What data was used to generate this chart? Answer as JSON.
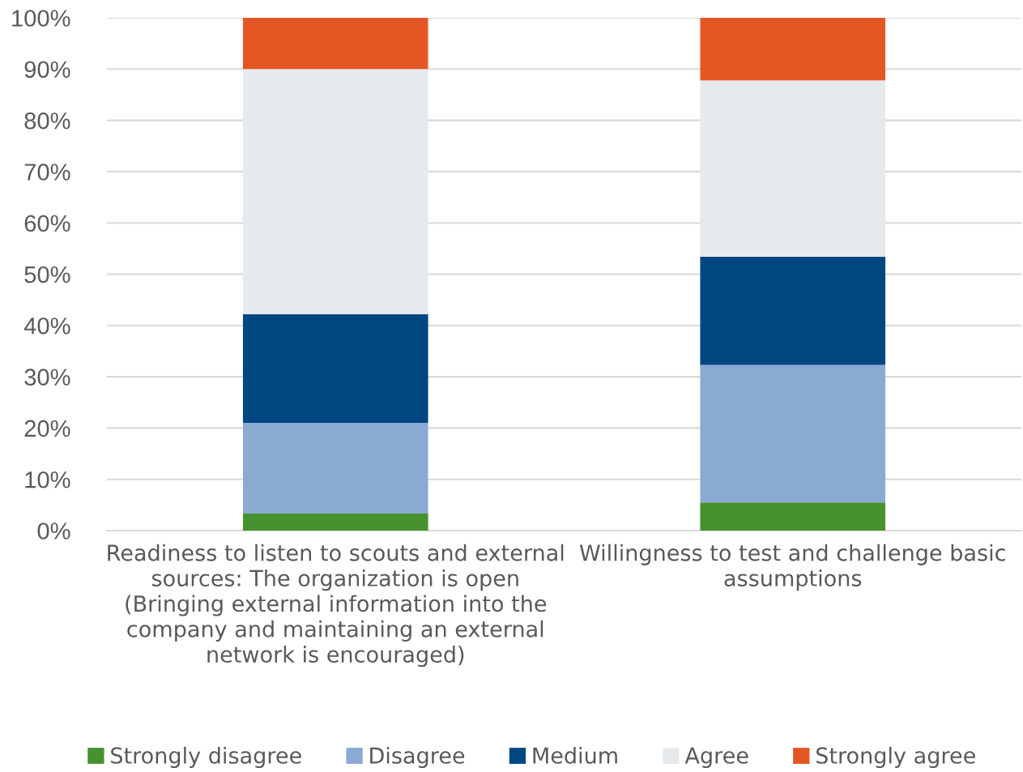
{
  "chart_data": {
    "type": "bar",
    "stacked": true,
    "categories": [
      "Readiness to listen to scouts and external\nsources: The organization is open\n(Bringing external information into the\ncompany and maintaining an external\nnetwork is encouraged)",
      "Willingness to test and challenge basic\nassumptions"
    ],
    "series": [
      {
        "name": "Strongly disagree",
        "color": "#46922f",
        "values": [
          3.3,
          5.5
        ]
      },
      {
        "name": "Disagree",
        "color": "#8aaad2",
        "values": [
          17.7,
          26.8
        ]
      },
      {
        "name": "Medium",
        "color": "#004781",
        "values": [
          21.2,
          21.1
        ]
      },
      {
        "name": "Agree",
        "color": "#e7eaed",
        "values": [
          47.8,
          34.4
        ]
      },
      {
        "name": "Strongly agree",
        "color": "#e55625",
        "values": [
          10.0,
          12.2
        ]
      }
    ],
    "ylim": [
      0,
      100
    ],
    "yticks": [
      {
        "value": 0,
        "label": "0%"
      },
      {
        "value": 10,
        "label": "10%"
      },
      {
        "value": 20,
        "label": "20%"
      },
      {
        "value": 30,
        "label": "30%"
      },
      {
        "value": 40,
        "label": "40%"
      },
      {
        "value": 50,
        "label": "50%"
      },
      {
        "value": 60,
        "label": "60%"
      },
      {
        "value": 70,
        "label": "70%"
      },
      {
        "value": 80,
        "label": "80%"
      },
      {
        "value": 90,
        "label": "90%"
      },
      {
        "value": 100,
        "label": "100%"
      }
    ],
    "grid": "y",
    "legend": "bottom"
  }
}
